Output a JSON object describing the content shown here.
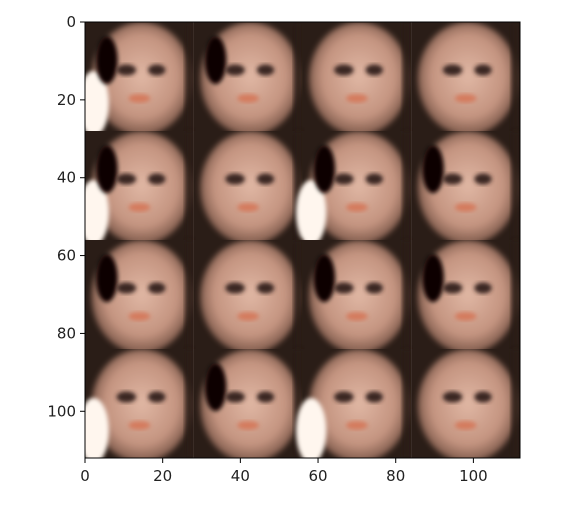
{
  "chart_data": {
    "type": "image",
    "title": "",
    "xlabel": "",
    "ylabel": "",
    "xlim": [
      0,
      112
    ],
    "ylim": [
      112,
      0
    ],
    "xticks": [
      0,
      20,
      40,
      60,
      80,
      100
    ],
    "yticks": [
      0,
      20,
      40,
      60,
      80,
      100
    ],
    "grid": {
      "rows": 4,
      "cols": 4,
      "tile_size": 28
    },
    "tiles": [
      {
        "row": 0,
        "col": 0,
        "hair": "dark-left",
        "glare": true
      },
      {
        "row": 0,
        "col": 1,
        "hair": "dark-left",
        "glare": false
      },
      {
        "row": 0,
        "col": 2,
        "hair": "none",
        "glare": false
      },
      {
        "row": 0,
        "col": 3,
        "hair": "none",
        "glare": false
      },
      {
        "row": 1,
        "col": 0,
        "hair": "dark-left",
        "glare": true
      },
      {
        "row": 1,
        "col": 1,
        "hair": "none",
        "glare": false
      },
      {
        "row": 1,
        "col": 2,
        "hair": "dark-left",
        "glare": true
      },
      {
        "row": 1,
        "col": 3,
        "hair": "dark-left",
        "glare": false
      },
      {
        "row": 2,
        "col": 0,
        "hair": "dark-left",
        "glare": false
      },
      {
        "row": 2,
        "col": 1,
        "hair": "none",
        "glare": false
      },
      {
        "row": 2,
        "col": 2,
        "hair": "dark-left",
        "glare": false
      },
      {
        "row": 2,
        "col": 3,
        "hair": "dark-left",
        "glare": false
      },
      {
        "row": 3,
        "col": 0,
        "hair": "none",
        "glare": true
      },
      {
        "row": 3,
        "col": 1,
        "hair": "dark-left",
        "glare": false
      },
      {
        "row": 3,
        "col": 2,
        "hair": "none",
        "glare": true
      },
      {
        "row": 3,
        "col": 3,
        "hair": "none",
        "glare": false
      }
    ]
  },
  "colors": {
    "skin": "#c49480",
    "skin_light": "#e0b7a4",
    "background": "#2a1d17",
    "hair": "#0c0604",
    "eye": "#3a2622",
    "glare": "#fff6ee",
    "mouth": "#d66a4a",
    "axis": "#000000",
    "text": "#222222"
  }
}
